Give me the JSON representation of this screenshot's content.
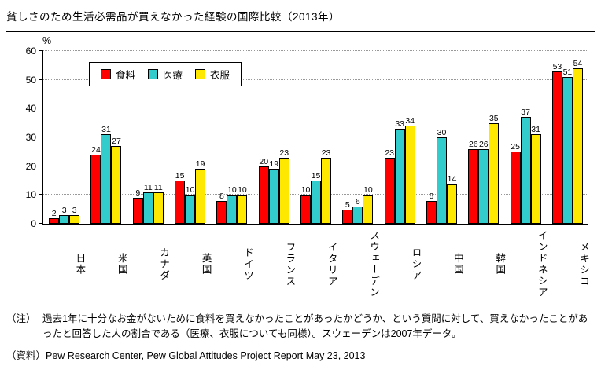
{
  "title": "貧しさのため生活必需品が買えなかった経験の国際比較（2013年）",
  "chart_data": {
    "type": "bar",
    "title": "貧しさのため生活必需品が買えなかった経験の国際比較（2013年）",
    "categories": [
      "日本",
      "米国",
      "カナダ",
      "英国",
      "ドイツ",
      "フランス",
      "イタリア",
      "スウェーデン",
      "ロシア",
      "中国",
      "韓国",
      "インドネシア",
      "メキシコ"
    ],
    "series": [
      {
        "name": "食料",
        "color": "#ff0000",
        "values": [
          2,
          24,
          9,
          15,
          8,
          20,
          10,
          5,
          23,
          8,
          26,
          25,
          53
        ]
      },
      {
        "name": "医療",
        "color": "#33cccc",
        "values": [
          3,
          31,
          11,
          10,
          10,
          19,
          15,
          6,
          33,
          30,
          26,
          37,
          51
        ]
      },
      {
        "name": "衣服",
        "color": "#ffe800",
        "values": [
          3,
          27,
          11,
          19,
          10,
          23,
          23,
          10,
          34,
          14,
          35,
          31,
          54
        ]
      }
    ],
    "ylabel": "%",
    "ylim": [
      0,
      60
    ],
    "ytick_interval": 10,
    "grid": true,
    "legend_position": "top-left-inside"
  },
  "notes": {
    "label": "（注）",
    "text": "過去1年に十分なお金がないために食料を買えなかったことがあったかどうか、という質問に対して、買えなかったことがあったと回答した人の割合である（医療、衣服についても同様）。スウェーデンは2007年データ。"
  },
  "source": "（資料）Pew Research Center, Pew Global Attitudes Project Report May 23, 2013"
}
